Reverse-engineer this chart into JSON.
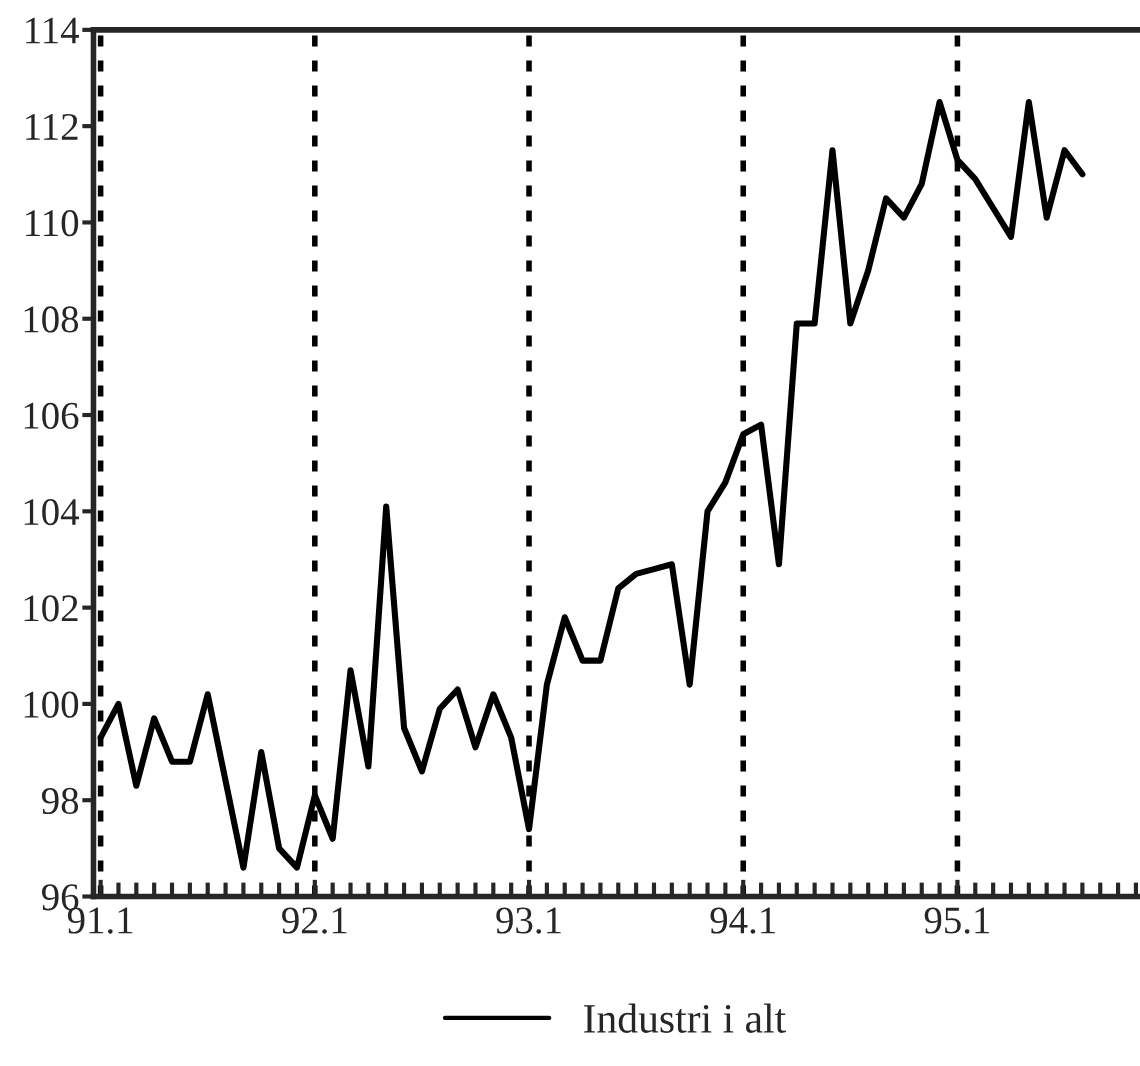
{
  "chart_data": {
    "type": "line",
    "categories": [
      "91.1",
      null,
      null,
      null,
      null,
      null,
      null,
      null,
      null,
      null,
      null,
      null,
      "92.1",
      null,
      null,
      null,
      null,
      null,
      null,
      null,
      null,
      null,
      null,
      null,
      "93.1",
      null,
      null,
      null,
      null,
      null,
      null,
      null,
      null,
      null,
      null,
      null,
      "94.1",
      null,
      null,
      null,
      null,
      null,
      null,
      null,
      null,
      null,
      null,
      null,
      "95.1",
      null,
      null,
      null,
      null,
      null,
      null,
      null,
      null,
      null,
      null
    ],
    "series": [
      {
        "name": "Industri i alt",
        "color": "#000000",
        "values": [
          99.3,
          100.0,
          98.3,
          99.7,
          98.8,
          98.8,
          100.2,
          98.4,
          96.6,
          99.0,
          97.0,
          96.6,
          98.1,
          97.2,
          100.7,
          98.7,
          104.1,
          99.5,
          98.6,
          99.9,
          100.3,
          99.1,
          100.2,
          99.3,
          97.4,
          100.4,
          101.8,
          100.9,
          100.9,
          102.4,
          102.7,
          102.8,
          102.9,
          100.4,
          104.0,
          104.6,
          105.6,
          105.8,
          102.9,
          107.9,
          107.9,
          111.5,
          107.9,
          109.0,
          110.5,
          110.1,
          110.8,
          112.5,
          111.3,
          110.9,
          110.3,
          109.7,
          112.5,
          110.1,
          111.5,
          111.0,
          null,
          null,
          null
        ]
      }
    ],
    "ylim": [
      96,
      114
    ],
    "yticks": [
      96,
      98,
      100,
      102,
      104,
      106,
      108,
      110,
      112,
      114
    ],
    "grid": "x",
    "legend": "bottom",
    "marker": "none",
    "line_style": "solid"
  }
}
